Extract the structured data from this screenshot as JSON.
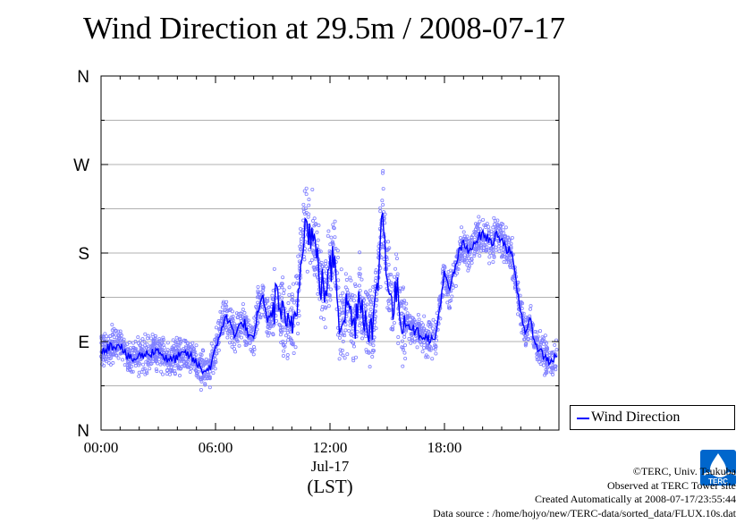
{
  "title": "Wind Direction at 29.5m / 2008-07-17",
  "chart_data": {
    "type": "scatter",
    "title": "Wind Direction at 29.5m / 2008-07-17",
    "xlabel_date": "Jul-17",
    "xlabel_tz": "(LST)",
    "x_unit": "hours (LST)",
    "xlim": [
      0,
      24
    ],
    "ylim": [
      0,
      360
    ],
    "y_unit": "degrees from north",
    "x_ticks": [
      0,
      6,
      12,
      18
    ],
    "x_tick_labels": [
      "00:00",
      "06:00",
      "12:00",
      "18:00"
    ],
    "y_ticks": [
      0,
      90,
      180,
      270,
      360
    ],
    "y_tick_labels": [
      "N",
      "E",
      "S",
      "W",
      "N"
    ],
    "grid": true,
    "legend_position": "outside-right-bottom",
    "series": [
      {
        "name": "Wind Direction",
        "color": "#0000ff",
        "point_color": "#8080ff",
        "x": [
          0.0,
          0.5,
          1.0,
          1.25,
          1.5,
          1.75,
          2.0,
          2.5,
          3.0,
          3.5,
          4.0,
          4.5,
          5.0,
          5.25,
          5.5,
          5.75,
          6.0,
          6.25,
          6.5,
          6.75,
          7.0,
          7.25,
          7.5,
          7.75,
          8.0,
          8.25,
          8.5,
          8.75,
          9.0,
          9.25,
          9.5,
          9.75,
          10.0,
          10.25,
          10.5,
          10.75,
          11.0,
          11.25,
          11.5,
          11.75,
          12.0,
          12.25,
          12.5,
          12.75,
          13.0,
          13.25,
          13.5,
          13.75,
          14.0,
          14.25,
          14.5,
          14.75,
          15.0,
          15.25,
          15.5,
          15.75,
          16.0,
          16.5,
          17.0,
          17.5,
          18.0,
          18.25,
          18.5,
          18.75,
          19.0,
          19.25,
          19.5,
          19.75,
          20.0,
          20.25,
          20.5,
          20.75,
          21.0,
          21.25,
          21.5,
          21.75,
          22.0,
          22.25,
          22.5,
          22.75,
          23.0,
          23.5,
          23.9
        ],
        "y": [
          82,
          85,
          88,
          78,
          72,
          72,
          75,
          78,
          82,
          70,
          74,
          78,
          68,
          62,
          60,
          66,
          80,
          100,
          115,
          108,
          98,
          105,
          110,
          95,
          90,
          125,
          135,
          110,
          120,
          140,
          115,
          100,
          110,
          120,
          190,
          210,
          200,
          185,
          150,
          140,
          160,
          180,
          110,
          120,
          130,
          100,
          140,
          120,
          110,
          100,
          150,
          225,
          160,
          120,
          140,
          115,
          110,
          100,
          95,
          90,
          160,
          140,
          160,
          180,
          190,
          180,
          190,
          195,
          200,
          195,
          190,
          200,
          195,
          185,
          180,
          150,
          120,
          100,
          110,
          90,
          80,
          70,
          75
        ]
      }
    ]
  },
  "legend": {
    "label": "Wind Direction"
  },
  "credits": {
    "line1": "©TERC, Univ. Tsukuba",
    "line2": "Observed at TERC Tower site",
    "line3": "Created Automatically at 2008-07-17/23:55:44",
    "line4": "Data source : /home/hojyo/new/TERC-data/sorted_data/FLUX.10s.dat"
  },
  "logo": {
    "text": "TERC",
    "color": "#0066cc"
  }
}
